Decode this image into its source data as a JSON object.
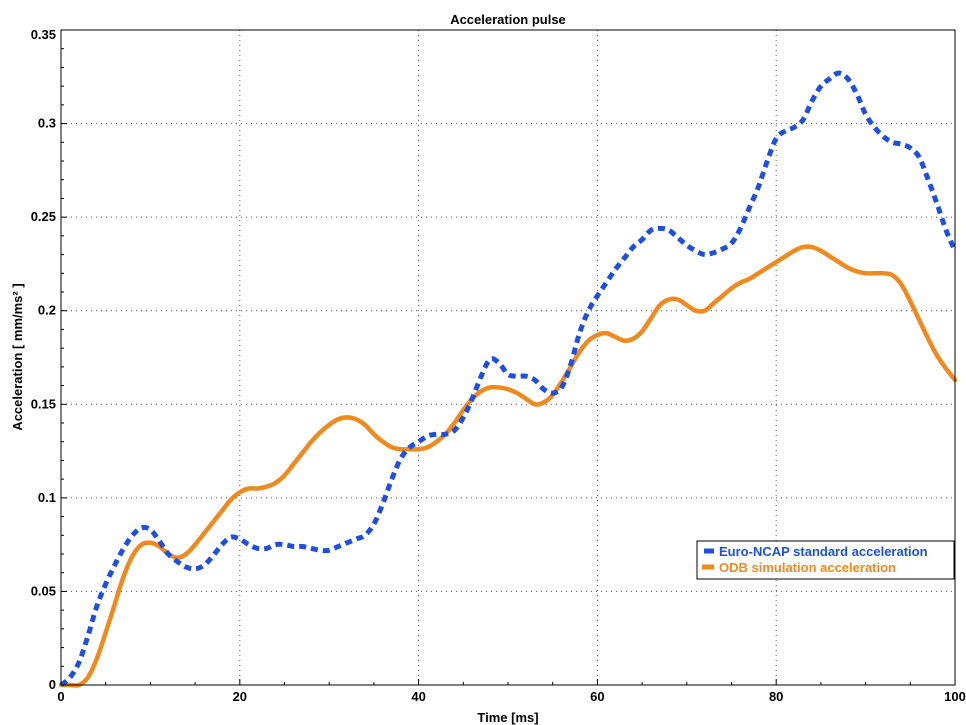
{
  "chart_data": {
    "type": "line",
    "title": "Acceleration pulse",
    "xlabel": "Time [ms]",
    "ylabel": "Acceleration [ mm/ms² ]",
    "xlim": [
      0,
      100
    ],
    "ylim": [
      0,
      0.35
    ],
    "x_ticks": [
      0,
      20,
      40,
      60,
      80,
      100
    ],
    "x_tick_labels": [
      "0",
      "20",
      "40",
      "60",
      "80",
      "100"
    ],
    "y_ticks": [
      0,
      0.05,
      0.1,
      0.15,
      0.2,
      0.25,
      0.3,
      0.35
    ],
    "y_tick_labels": [
      "0",
      "0.05",
      "0.1",
      "0.15",
      "0.2",
      "0.25",
      "0.3",
      "0.35"
    ],
    "grid": true,
    "legend_position": "bottom-right",
    "series": [
      {
        "name": "Euro-NCAP standard acceleration",
        "color": "#1f4fe0",
        "style": "dashed",
        "x": [
          0,
          1,
          2,
          3,
          4,
          5,
          6,
          7,
          8,
          9,
          10,
          11,
          12,
          13,
          14,
          15,
          16,
          17,
          18,
          19,
          20,
          21,
          22,
          23,
          24,
          25,
          26,
          27,
          28,
          29,
          30,
          31,
          32,
          33,
          34,
          35,
          36,
          37,
          38,
          39,
          40,
          41,
          42,
          43,
          44,
          45,
          46,
          47,
          48,
          49,
          50,
          51,
          52,
          53,
          54,
          55,
          56,
          57,
          58,
          59,
          60,
          61,
          62,
          63,
          64,
          65,
          66,
          67,
          68,
          69,
          70,
          71,
          72,
          73,
          74,
          75,
          76,
          77,
          78,
          79,
          80,
          81,
          82,
          83,
          84,
          85,
          86,
          87,
          88,
          89,
          90,
          91,
          92,
          93,
          94,
          95,
          96,
          97,
          98,
          99,
          100
        ],
        "y": [
          0.0,
          0.004,
          0.012,
          0.026,
          0.042,
          0.054,
          0.064,
          0.073,
          0.08,
          0.084,
          0.083,
          0.077,
          0.07,
          0.066,
          0.063,
          0.062,
          0.064,
          0.069,
          0.075,
          0.079,
          0.078,
          0.075,
          0.073,
          0.073,
          0.075,
          0.075,
          0.074,
          0.074,
          0.073,
          0.072,
          0.072,
          0.074,
          0.076,
          0.078,
          0.08,
          0.086,
          0.097,
          0.11,
          0.121,
          0.127,
          0.13,
          0.133,
          0.134,
          0.134,
          0.136,
          0.143,
          0.153,
          0.165,
          0.174,
          0.172,
          0.166,
          0.165,
          0.165,
          0.163,
          0.158,
          0.156,
          0.159,
          0.171,
          0.188,
          0.2,
          0.208,
          0.215,
          0.222,
          0.228,
          0.234,
          0.238,
          0.243,
          0.244,
          0.243,
          0.239,
          0.235,
          0.232,
          0.23,
          0.231,
          0.233,
          0.236,
          0.244,
          0.255,
          0.266,
          0.28,
          0.292,
          0.296,
          0.298,
          0.302,
          0.312,
          0.32,
          0.324,
          0.327,
          0.324,
          0.316,
          0.305,
          0.298,
          0.293,
          0.29,
          0.289,
          0.287,
          0.282,
          0.27,
          0.257,
          0.243,
          0.232
        ]
      },
      {
        "name": "ODB simulation acceleration",
        "color": "#f08a1e",
        "style": "solid",
        "x": [
          0,
          1,
          2,
          3,
          4,
          5,
          6,
          7,
          8,
          9,
          10,
          11,
          12,
          13,
          14,
          15,
          16,
          17,
          18,
          19,
          20,
          21,
          22,
          23,
          24,
          25,
          26,
          27,
          28,
          29,
          30,
          31,
          32,
          33,
          34,
          35,
          36,
          37,
          38,
          39,
          40,
          41,
          42,
          43,
          44,
          45,
          46,
          47,
          48,
          49,
          50,
          51,
          52,
          53,
          54,
          55,
          56,
          57,
          58,
          59,
          60,
          61,
          62,
          63,
          64,
          65,
          66,
          67,
          68,
          69,
          70,
          71,
          72,
          73,
          74,
          75,
          76,
          77,
          78,
          79,
          80,
          81,
          82,
          83,
          84,
          85,
          86,
          87,
          88,
          89,
          90,
          91,
          92,
          93,
          94,
          95,
          96,
          97,
          98,
          99,
          100
        ],
        "y": [
          0.0,
          0.0,
          0.0,
          0.004,
          0.014,
          0.028,
          0.043,
          0.058,
          0.069,
          0.075,
          0.076,
          0.074,
          0.07,
          0.068,
          0.07,
          0.075,
          0.081,
          0.087,
          0.093,
          0.099,
          0.103,
          0.105,
          0.105,
          0.106,
          0.108,
          0.112,
          0.118,
          0.124,
          0.13,
          0.135,
          0.139,
          0.142,
          0.143,
          0.142,
          0.139,
          0.134,
          0.13,
          0.127,
          0.126,
          0.126,
          0.126,
          0.127,
          0.13,
          0.134,
          0.14,
          0.147,
          0.153,
          0.157,
          0.159,
          0.159,
          0.158,
          0.156,
          0.153,
          0.15,
          0.151,
          0.155,
          0.162,
          0.17,
          0.178,
          0.184,
          0.187,
          0.188,
          0.186,
          0.184,
          0.185,
          0.189,
          0.196,
          0.203,
          0.206,
          0.206,
          0.203,
          0.2,
          0.2,
          0.204,
          0.208,
          0.212,
          0.215,
          0.217,
          0.22,
          0.223,
          0.226,
          0.229,
          0.232,
          0.234,
          0.234,
          0.232,
          0.229,
          0.226,
          0.223,
          0.221,
          0.22,
          0.22,
          0.22,
          0.219,
          0.214,
          0.205,
          0.195,
          0.185,
          0.176,
          0.169,
          0.163
        ]
      }
    ]
  }
}
